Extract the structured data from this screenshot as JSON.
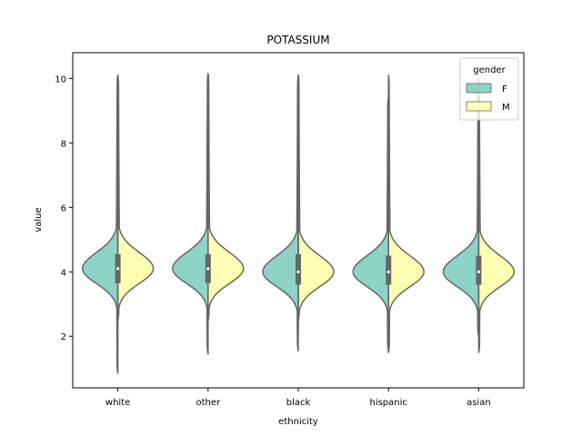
{
  "chart_data": {
    "type": "violin",
    "title": "POTASSIUM",
    "xlabel": "ethnicity",
    "ylabel": "value",
    "ylim": [
      0.4,
      10.8
    ],
    "yticks": [
      2,
      4,
      6,
      8,
      10
    ],
    "split": true,
    "categories": [
      "white",
      "other",
      "black",
      "hispanic",
      "asian"
    ],
    "legend": {
      "title": "gender",
      "placement": "top-right",
      "entries": [
        {
          "name": "F",
          "color": "#8dd3c7"
        },
        {
          "name": "M",
          "color": "#ffffb3"
        }
      ]
    },
    "series": [
      {
        "name": "F",
        "color": "#8dd3c7",
        "stats": [
          {
            "category": "white",
            "min": 0.85,
            "max": 10.1,
            "q1": 3.65,
            "median": 4.1,
            "q3": 4.55
          },
          {
            "category": "other",
            "min": 1.45,
            "max": 10.15,
            "q1": 3.65,
            "median": 4.1,
            "q3": 4.55
          },
          {
            "category": "black",
            "min": 1.55,
            "max": 10.1,
            "q1": 3.6,
            "median": 4.0,
            "q3": 4.55
          },
          {
            "category": "hispanic",
            "min": 1.55,
            "max": 9.4,
            "q1": 3.6,
            "median": 4.0,
            "q3": 4.5
          },
          {
            "category": "asian",
            "min": 2.0,
            "max": 10.0,
            "q1": 3.6,
            "median": 4.0,
            "q3": 4.5
          }
        ]
      },
      {
        "name": "M",
        "color": "#ffffb3",
        "stats": [
          {
            "category": "white",
            "min": 2.5,
            "max": 10.1,
            "q1": 3.65,
            "median": 4.1,
            "q3": 4.55
          },
          {
            "category": "other",
            "min": 2.5,
            "max": 10.15,
            "q1": 3.65,
            "median": 4.1,
            "q3": 4.55
          },
          {
            "category": "black",
            "min": 2.5,
            "max": 10.1,
            "q1": 3.6,
            "median": 4.0,
            "q3": 4.55
          },
          {
            "category": "hispanic",
            "min": 1.5,
            "max": 10.1,
            "q1": 3.6,
            "median": 4.0,
            "q3": 4.5
          },
          {
            "category": "asian",
            "min": 1.5,
            "max": 9.5,
            "q1": 3.6,
            "median": 4.0,
            "q3": 4.5
          }
        ]
      }
    ]
  }
}
